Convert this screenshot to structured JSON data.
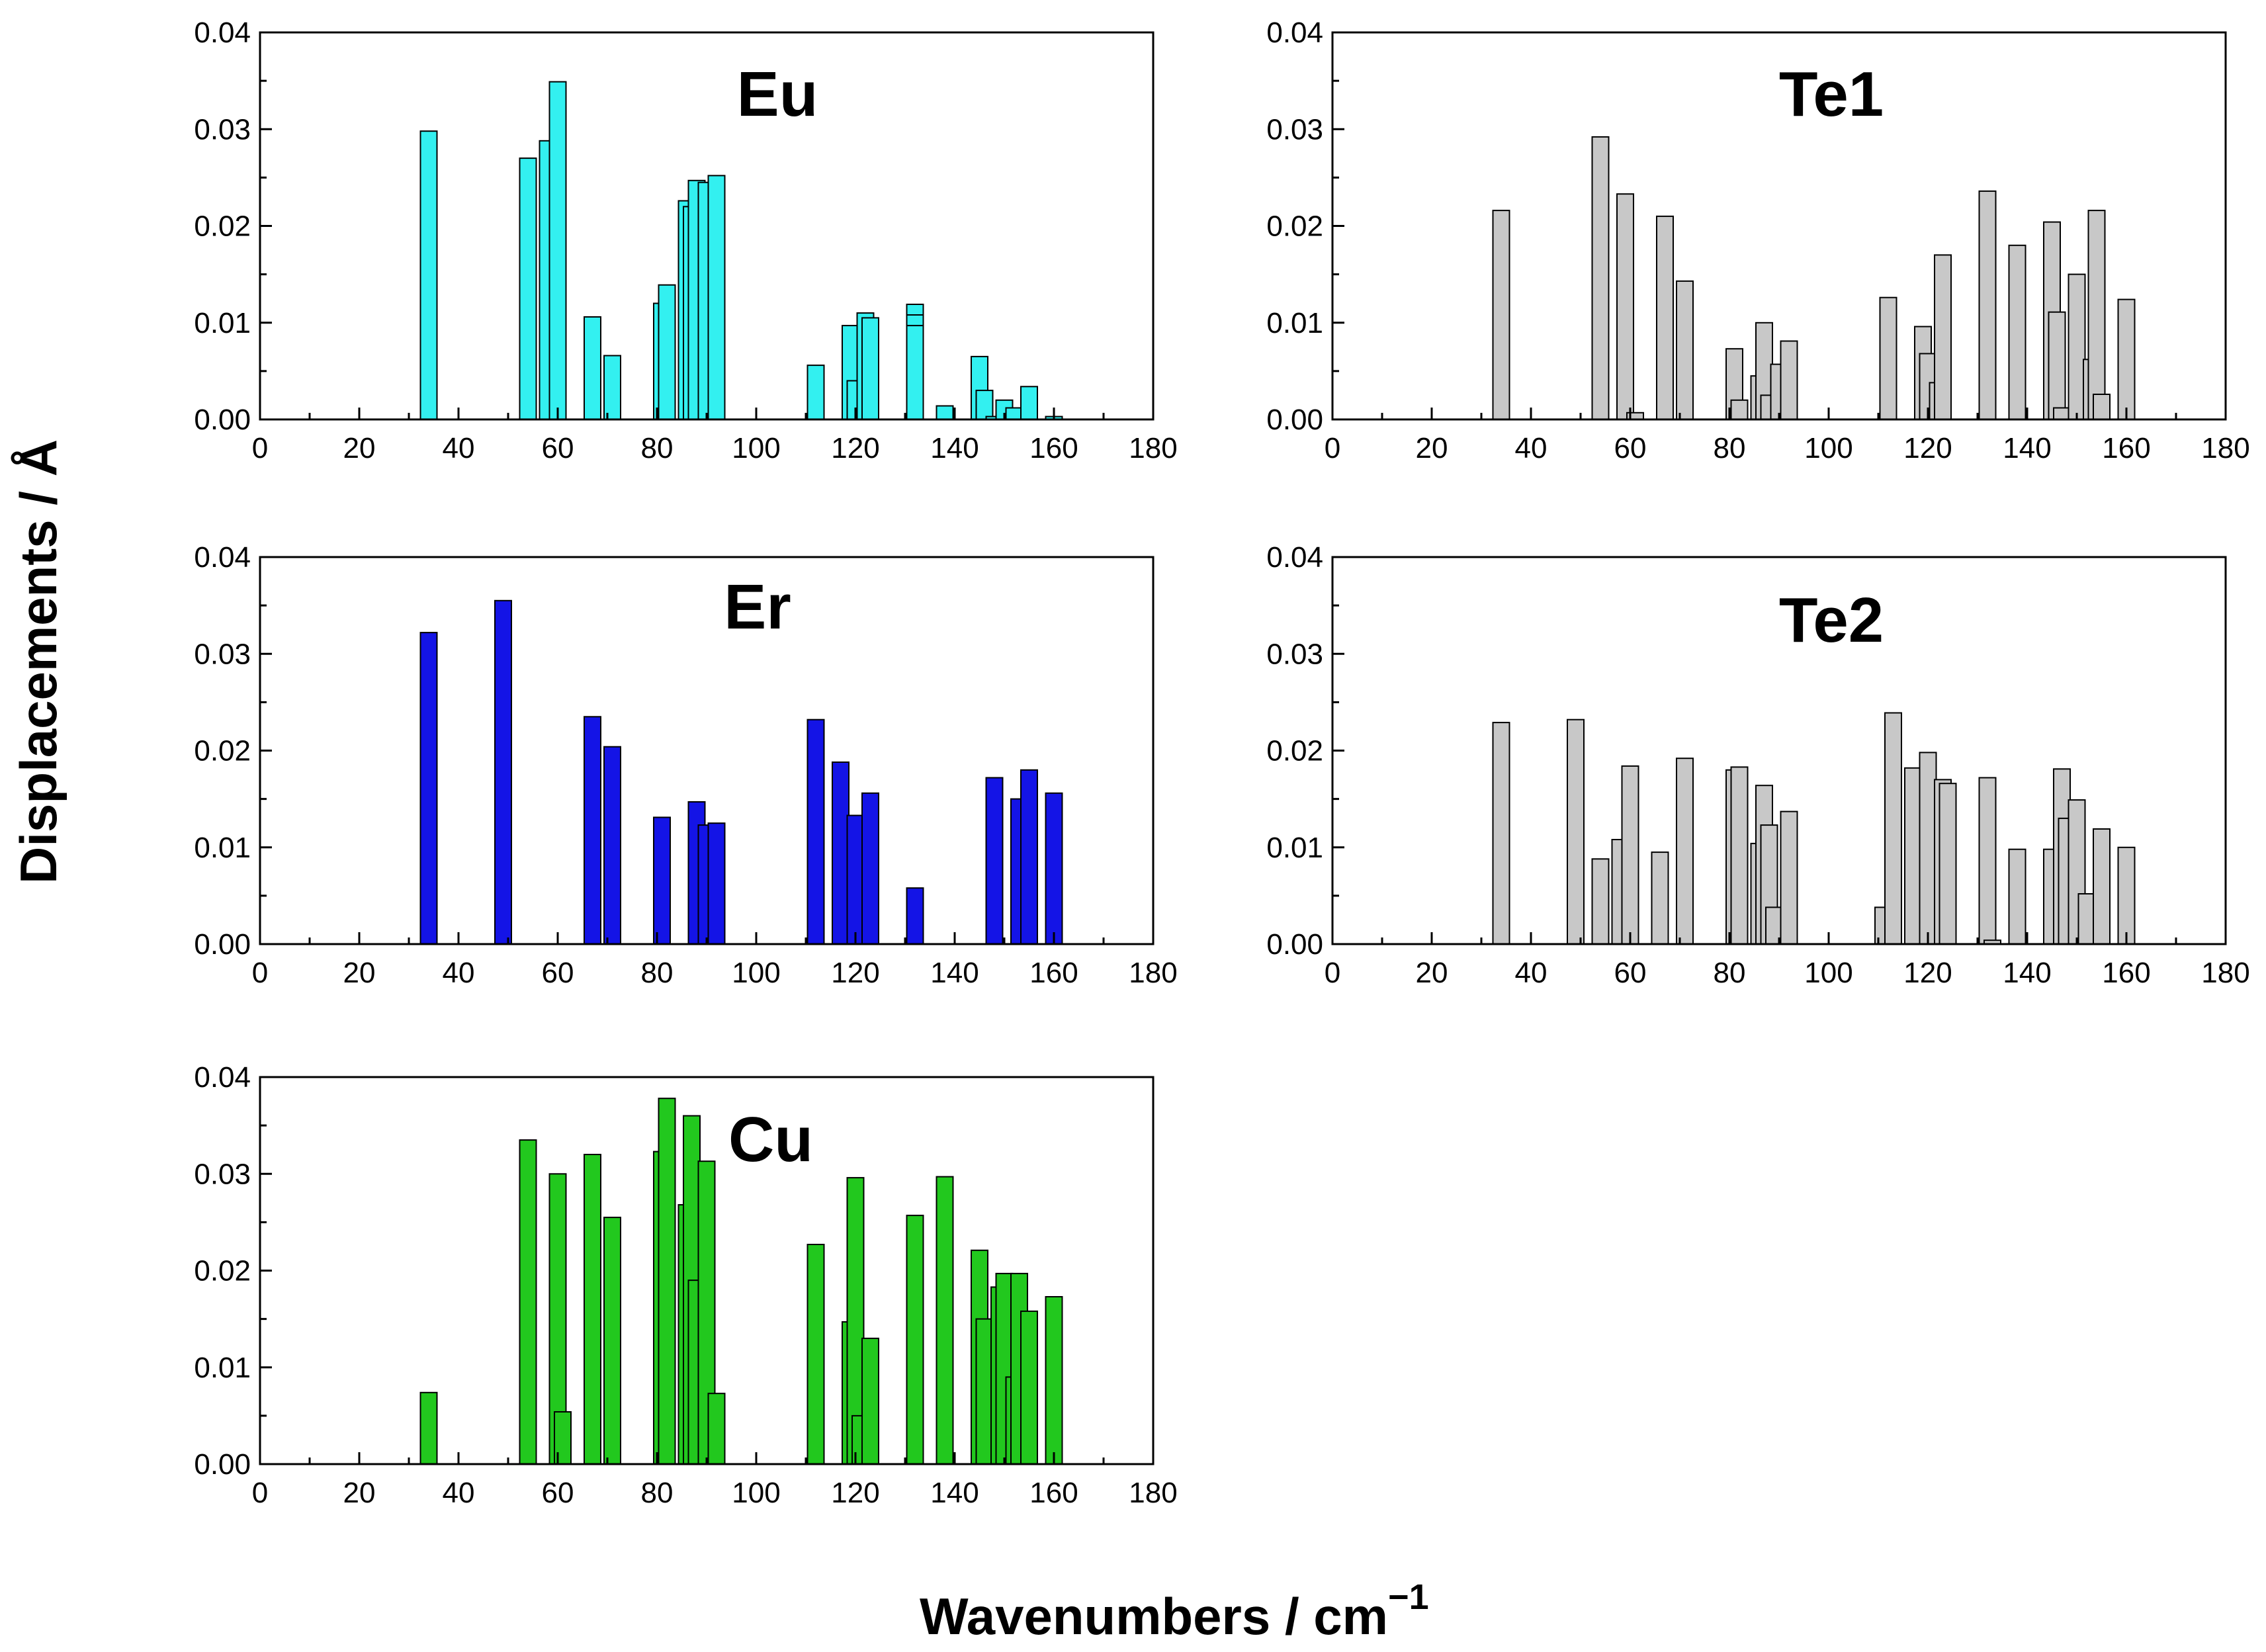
{
  "figure": {
    "ylabel": "Displacements / Å",
    "xlabel": "Wavenumbers / cm",
    "xlabel_superscript": "−1"
  },
  "chart_data": [
    {
      "type": "bar",
      "title": "Eu",
      "bar_color": "#33f0f0",
      "xlim": [
        0,
        180
      ],
      "ylim": [
        0,
        0.04
      ],
      "xticks": [
        0,
        20,
        40,
        60,
        80,
        100,
        120,
        140,
        160,
        180
      ],
      "yticks": [
        0.0,
        0.01,
        0.02,
        0.03,
        0.04
      ],
      "x": [
        34,
        54,
        58,
        60,
        67,
        71,
        81,
        82,
        86,
        87,
        88,
        90,
        92,
        112,
        119,
        120,
        122,
        123,
        132,
        132,
        132,
        138,
        145,
        146,
        148,
        150,
        152,
        155,
        160
      ],
      "values": [
        0.0298,
        0.027,
        0.0288,
        0.0349,
        0.0106,
        0.0066,
        0.012,
        0.0139,
        0.0226,
        0.022,
        0.0247,
        0.0245,
        0.0252,
        0.0056,
        0.0097,
        0.004,
        0.011,
        0.0105,
        0.0119,
        0.0108,
        0.0097,
        0.0014,
        0.0065,
        0.003,
        0.0003,
        0.002,
        0.0012,
        0.0034,
        0.0003
      ]
    },
    {
      "type": "bar",
      "title": "Te1",
      "bar_color": "#c8c8c8",
      "xlim": [
        0,
        180
      ],
      "ylim": [
        0,
        0.04
      ],
      "xticks": [
        0,
        20,
        40,
        60,
        80,
        100,
        120,
        140,
        160,
        180
      ],
      "yticks": [
        0.0,
        0.01,
        0.02,
        0.03,
        0.04
      ],
      "x": [
        34,
        54,
        59,
        61,
        67,
        71,
        81,
        82,
        86,
        87,
        88,
        90,
        92,
        112,
        119,
        120,
        122,
        123,
        132,
        132,
        138,
        145,
        146,
        147,
        150,
        153,
        154,
        155,
        160
      ],
      "values": [
        0.0216,
        0.0292,
        0.0233,
        0.0007,
        0.021,
        0.0143,
        0.0073,
        0.002,
        0.0045,
        0.01,
        0.0025,
        0.0057,
        0.0081,
        0.0126,
        0.0096,
        0.0068,
        0.0038,
        0.017,
        0.022,
        0.0236,
        0.018,
        0.0204,
        0.0111,
        0.0012,
        0.015,
        0.0062,
        0.0216,
        0.0026,
        0.0124
      ]
    },
    {
      "type": "bar",
      "title": "Er",
      "bar_color": "#1414e6",
      "xlim": [
        0,
        180
      ],
      "ylim": [
        0,
        0.04
      ],
      "xticks": [
        0,
        20,
        40,
        60,
        80,
        100,
        120,
        140,
        160,
        180
      ],
      "yticks": [
        0.0,
        0.01,
        0.02,
        0.03,
        0.04
      ],
      "x": [
        34,
        49,
        67,
        71,
        81,
        88,
        90,
        92,
        112,
        117,
        120,
        123,
        132,
        148,
        153,
        155,
        160
      ],
      "values": [
        0.0322,
        0.0355,
        0.0235,
        0.0204,
        0.0131,
        0.0147,
        0.0123,
        0.0125,
        0.0232,
        0.0188,
        0.0133,
        0.0156,
        0.0058,
        0.0172,
        0.015,
        0.018,
        0.0156
      ]
    },
    {
      "type": "bar",
      "title": "Te2",
      "bar_color": "#c8c8c8",
      "xlim": [
        0,
        180
      ],
      "ylim": [
        0,
        0.04
      ],
      "xticks": [
        0,
        20,
        40,
        60,
        80,
        100,
        120,
        140,
        160,
        180
      ],
      "yticks": [
        0.0,
        0.01,
        0.02,
        0.03,
        0.04
      ],
      "x": [
        34,
        49,
        54,
        58,
        60,
        66,
        71,
        81,
        82,
        86,
        87,
        88,
        89,
        92,
        111,
        113,
        117,
        120,
        120,
        123,
        124,
        132,
        133,
        138,
        145,
        147,
        148,
        150,
        152,
        155,
        160
      ],
      "values": [
        0.0229,
        0.0232,
        0.0088,
        0.0108,
        0.0184,
        0.0095,
        0.0192,
        0.018,
        0.0183,
        0.0104,
        0.0164,
        0.0123,
        0.0038,
        0.0137,
        0.0038,
        0.0239,
        0.0182,
        0.0135,
        0.0198,
        0.017,
        0.0166,
        0.0172,
        0.0004,
        0.0098,
        0.0098,
        0.0181,
        0.013,
        0.0149,
        0.0052,
        0.0119,
        0.01
      ]
    },
    {
      "type": "bar",
      "title": "Cu",
      "bar_color": "#22c81e",
      "xlim": [
        0,
        180
      ],
      "ylim": [
        0,
        0.04
      ],
      "xticks": [
        0,
        20,
        40,
        60,
        80,
        100,
        120,
        140,
        160,
        180
      ],
      "yticks": [
        0.0,
        0.01,
        0.02,
        0.03,
        0.04
      ],
      "x": [
        34,
        54,
        60,
        61,
        67,
        71,
        81,
        82,
        86,
        87,
        88,
        90,
        92,
        112,
        119,
        120,
        121,
        123,
        132,
        132,
        138,
        145,
        146,
        149,
        150,
        152,
        153,
        155,
        160
      ],
      "values": [
        0.0074,
        0.0335,
        0.03,
        0.0054,
        0.032,
        0.0255,
        0.0323,
        0.0378,
        0.0268,
        0.036,
        0.019,
        0.0313,
        0.0073,
        0.0227,
        0.0147,
        0.0296,
        0.005,
        0.013,
        0.023,
        0.0257,
        0.0297,
        0.0221,
        0.015,
        0.0183,
        0.0197,
        0.009,
        0.0197,
        0.0158,
        0.0173
      ]
    }
  ]
}
